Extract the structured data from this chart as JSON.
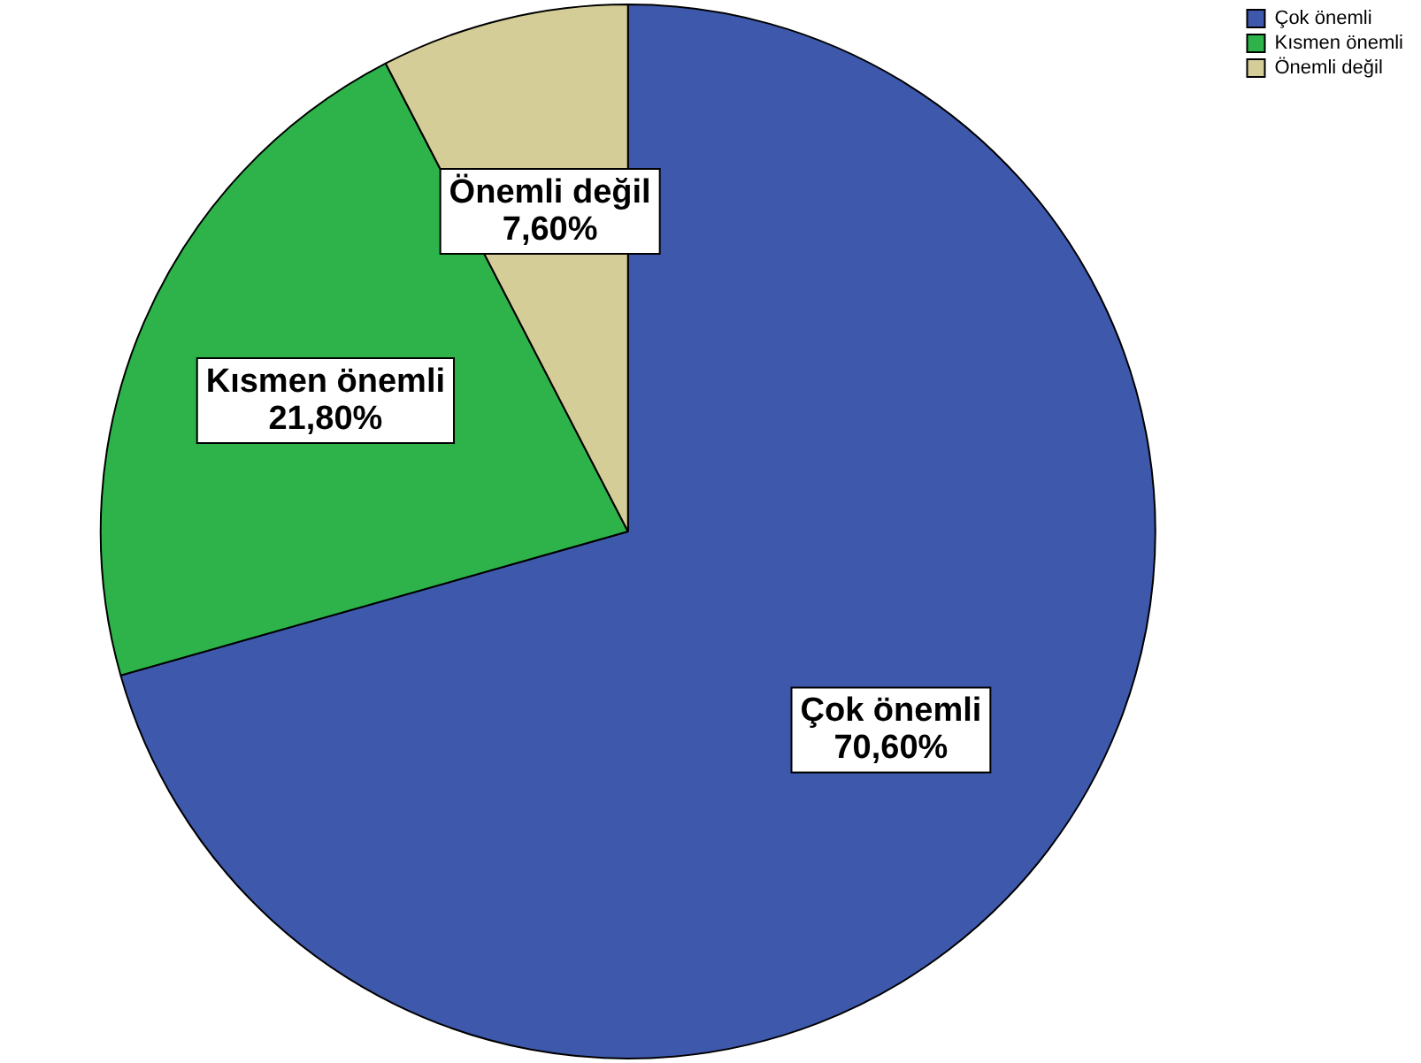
{
  "chart_data": {
    "type": "pie",
    "categories": [
      "Çok önemli",
      "Kısmen önemli",
      "Önemli değil"
    ],
    "values": [
      70.6,
      21.8,
      7.6
    ],
    "colors": [
      "#3e58ac",
      "#2db34a",
      "#d4cd98"
    ],
    "value_labels": [
      "70,60%",
      "21,80%",
      "7,60%"
    ],
    "legend": "top right"
  }
}
